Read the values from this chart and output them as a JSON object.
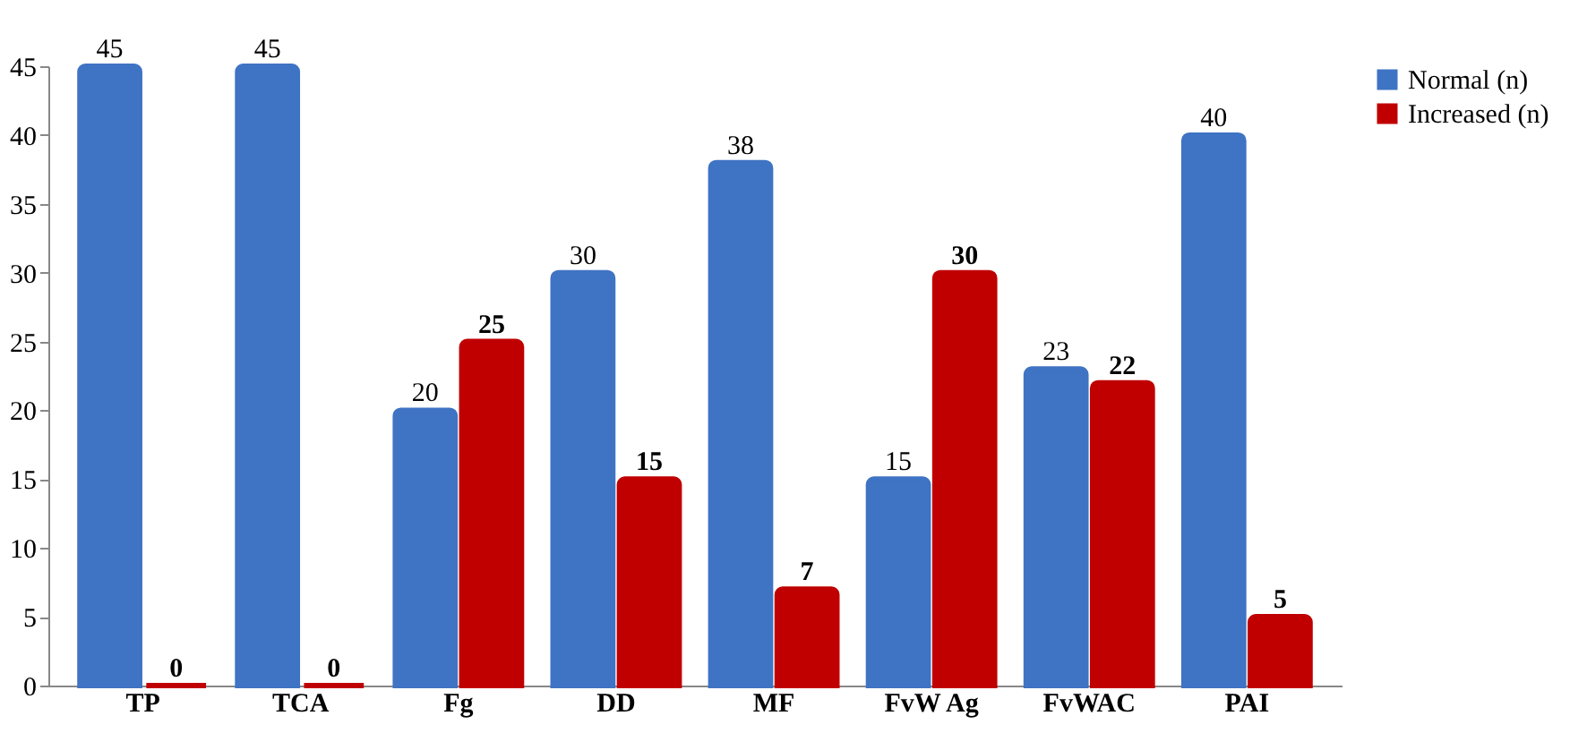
{
  "chart_data": {
    "type": "bar",
    "categories": [
      "TP",
      "TCA",
      "Fg",
      "DD",
      "MF",
      "FvW Ag",
      "FvWAC",
      "PAI"
    ],
    "series": [
      {
        "name": "Normal (n)",
        "color": "#3f73c3",
        "values": [
          45,
          45,
          20,
          30,
          38,
          15,
          23,
          40
        ]
      },
      {
        "name": "Increased (n)",
        "color": "#c00000",
        "values": [
          0,
          0,
          25,
          15,
          7,
          30,
          22,
          5
        ]
      }
    ],
    "ylim": [
      0,
      45
    ],
    "yticks": [
      0,
      5,
      10,
      15,
      20,
      25,
      30,
      35,
      40,
      45
    ],
    "data_labels": true,
    "legend": "right",
    "grid": false
  }
}
